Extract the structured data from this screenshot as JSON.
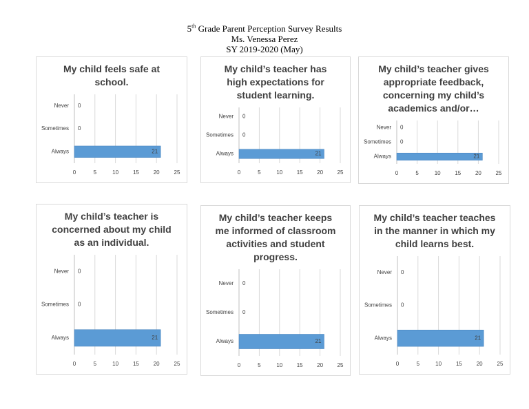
{
  "header": {
    "grade": "5",
    "grade_suffix": "th",
    "title": "Grade Parent Perception Survey Results",
    "teacher": "Ms. Venessa Perez",
    "school_year": "SY 2019-2020 (May)"
  },
  "chart_data": [
    {
      "type": "bar",
      "orientation": "horizontal",
      "title": "My child feels safe at school.",
      "categories": [
        "Never",
        "Sometimes",
        "Always"
      ],
      "values": [
        0,
        0,
        21
      ],
      "color": "#5b9bd5",
      "xlim": [
        0,
        25
      ],
      "xticks": [
        0,
        5,
        10,
        15,
        20,
        25
      ],
      "grid": true
    },
    {
      "type": "bar",
      "orientation": "horizontal",
      "title": "My child’s teacher has high expectations for student learning.",
      "categories": [
        "Never",
        "Sometimes",
        "Always"
      ],
      "values": [
        0,
        0,
        21
      ],
      "color": "#5b9bd5",
      "xlim": [
        0,
        25
      ],
      "xticks": [
        0,
        5,
        10,
        15,
        20,
        25
      ],
      "grid": true
    },
    {
      "type": "bar",
      "orientation": "horizontal",
      "title": "My child’s teacher gives appropriate feedback, concerning my child’s academics and/or…",
      "categories": [
        "Never",
        "Sometimes",
        "Always"
      ],
      "values": [
        0,
        0,
        21
      ],
      "color": "#5b9bd5",
      "xlim": [
        0,
        25
      ],
      "xticks": [
        0,
        5,
        10,
        15,
        20,
        25
      ],
      "grid": true
    },
    {
      "type": "bar",
      "orientation": "horizontal",
      "title": "My child’s teacher is concerned about my child as an individual.",
      "categories": [
        "Never",
        "Sometimes",
        "Always"
      ],
      "values": [
        0,
        0,
        21
      ],
      "color": "#5b9bd5",
      "xlim": [
        0,
        25
      ],
      "xticks": [
        0,
        5,
        10,
        15,
        20,
        25
      ],
      "grid": true
    },
    {
      "type": "bar",
      "orientation": "horizontal",
      "title": "My child’s teacher keeps me informed of classroom activities and student progress.",
      "categories": [
        "Never",
        "Sometimes",
        "Always"
      ],
      "values": [
        0,
        0,
        21
      ],
      "color": "#5b9bd5",
      "xlim": [
        0,
        25
      ],
      "xticks": [
        0,
        5,
        10,
        15,
        20,
        25
      ],
      "grid": true
    },
    {
      "type": "bar",
      "orientation": "horizontal",
      "title": "My child’s teacher teaches in the manner in which my child learns best.",
      "categories": [
        "Never",
        "Sometimes",
        "Always"
      ],
      "values": [
        0,
        0,
        21
      ],
      "color": "#5b9bd5",
      "xlim": [
        0,
        25
      ],
      "xticks": [
        0,
        5,
        10,
        15,
        20,
        25
      ],
      "grid": true
    }
  ]
}
